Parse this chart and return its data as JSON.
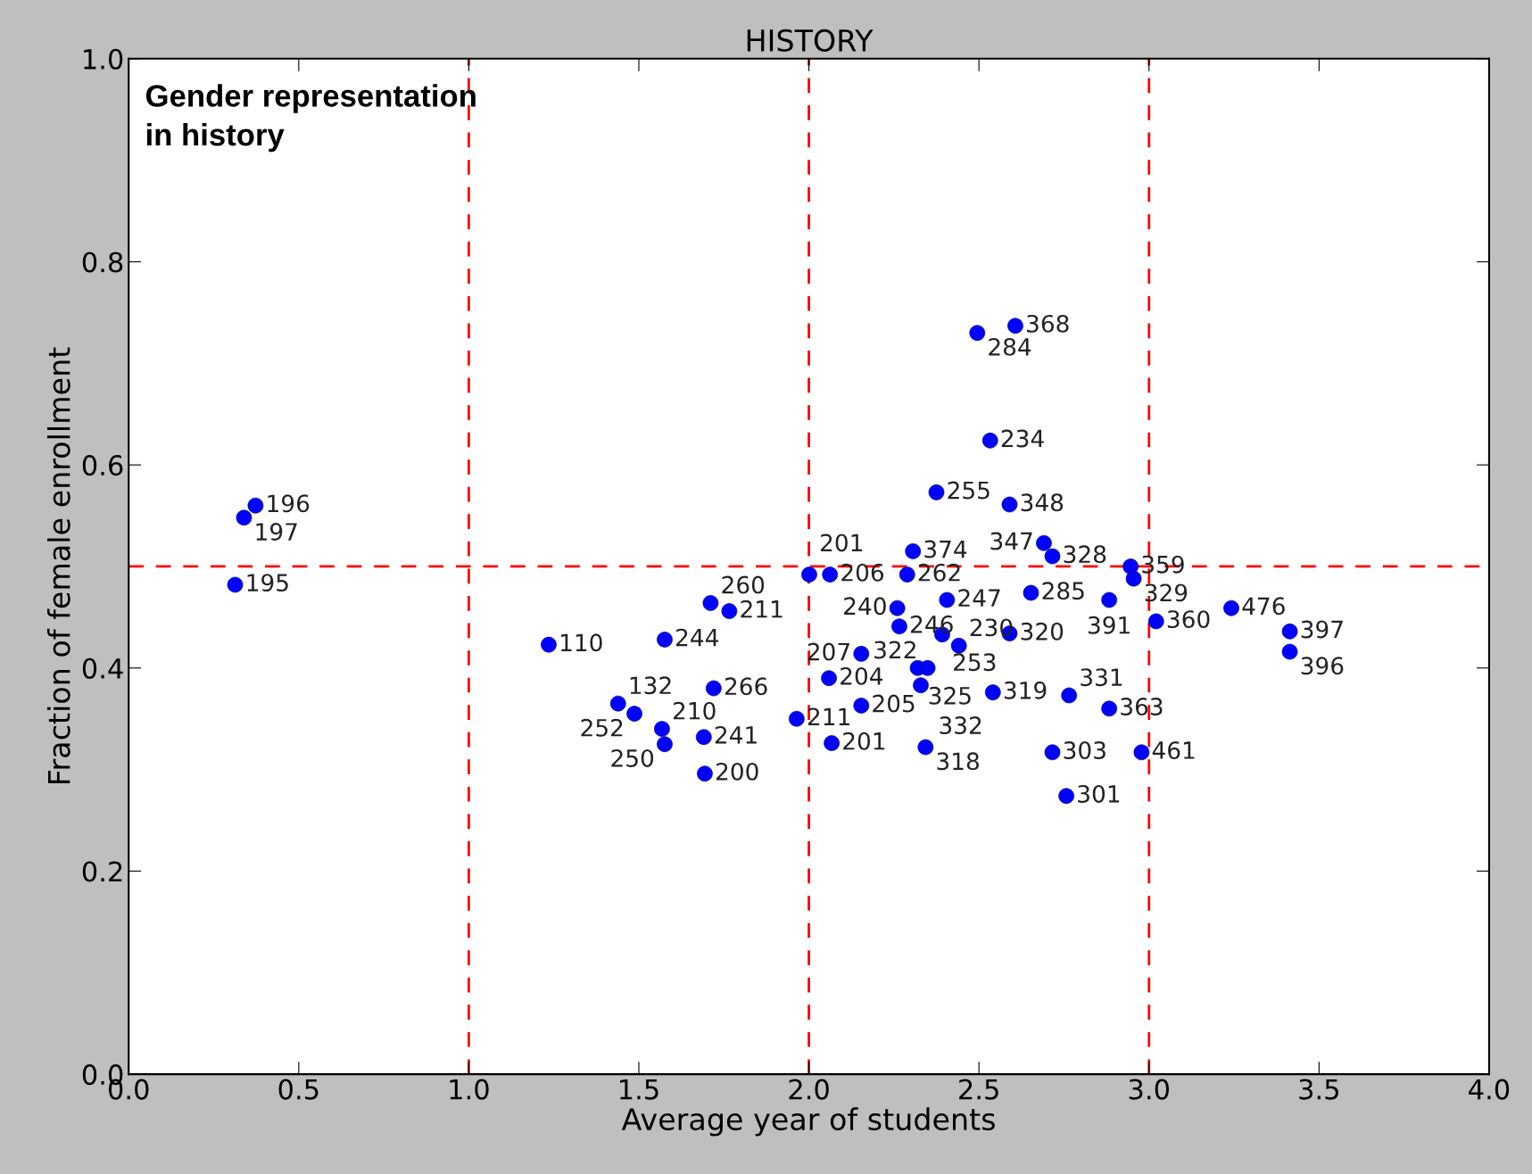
{
  "chart_data": {
    "type": "scatter",
    "title": "HISTORY",
    "xlabel": "Average year of students",
    "ylabel": "Fraction of female enrollment",
    "xlim": [
      0,
      4
    ],
    "ylim": [
      0,
      1
    ],
    "xticks": [
      {
        "value": 0,
        "label": "0.0"
      },
      {
        "value": 0.5,
        "label": "0.5"
      },
      {
        "value": 1,
        "label": "1.0"
      },
      {
        "value": 1.5,
        "label": "1.5"
      },
      {
        "value": 2,
        "label": "2.0"
      },
      {
        "value": 2.5,
        "label": "2.5"
      },
      {
        "value": 3,
        "label": "3.0"
      },
      {
        "value": 3.5,
        "label": "3.5"
      },
      {
        "value": 4,
        "label": "4.0"
      }
    ],
    "yticks": [
      {
        "value": 0,
        "label": "0.0"
      },
      {
        "value": 0.2,
        "label": "0.2"
      },
      {
        "value": 0.4,
        "label": "0.4"
      },
      {
        "value": 0.6,
        "label": "0.6"
      },
      {
        "value": 0.8,
        "label": "0.8"
      },
      {
        "value": 1,
        "label": "1.0"
      }
    ],
    "grid": false,
    "marker": "circle",
    "series": [
      {
        "color": "#0000ff",
        "x": [
          0.373,
          0.339,
          0.313,
          1.235,
          1.576,
          1.711,
          1.766,
          1.72,
          1.439,
          1.487,
          1.568,
          1.691,
          1.576,
          1.694,
          1.964,
          2.067,
          2.154,
          2.059,
          2.154,
          2.001,
          2.062,
          2.289,
          2.306,
          2.26,
          2.266,
          2.406,
          2.392,
          2.441,
          2.32,
          2.349,
          2.329,
          2.343,
          2.541,
          2.59,
          2.653,
          2.375,
          2.59,
          2.533,
          2.495,
          2.607,
          2.691,
          2.716,
          2.946,
          2.955,
          2.883,
          3.021,
          3.242,
          3.414,
          3.414,
          2.765,
          2.883,
          2.716,
          2.978,
          2.757
        ],
        "values": [
          0.56,
          0.548,
          0.482,
          0.423,
          0.428,
          0.464,
          0.456,
          0.38,
          0.365,
          0.355,
          0.34,
          0.332,
          0.325,
          0.296,
          0.35,
          0.326,
          0.363,
          0.39,
          0.414,
          0.492,
          0.492,
          0.492,
          0.515,
          0.459,
          0.441,
          0.467,
          0.433,
          0.422,
          0.4,
          0.4,
          0.383,
          0.322,
          0.376,
          0.434,
          0.474,
          0.573,
          0.561,
          0.624,
          0.73,
          0.737,
          0.523,
          0.51,
          0.5,
          0.488,
          0.467,
          0.446,
          0.459,
          0.436,
          0.416,
          0.373,
          0.36,
          0.317,
          0.317,
          0.274
        ]
      }
    ],
    "ref_lines": [
      {
        "axis": "x",
        "value": 1,
        "color": "#ff0000",
        "line_style": "dashed"
      },
      {
        "axis": "x",
        "value": 2,
        "color": "#ff0000",
        "line_style": "dashed"
      },
      {
        "axis": "x",
        "value": 3,
        "color": "#ff0000",
        "line_style": "dashed"
      },
      {
        "axis": "y",
        "value": 0.5,
        "color": "#ff0000",
        "line_style": "dashed"
      }
    ],
    "annotations": [
      "Gender representation\nin history",
      {
        "text": "196",
        "x": 0.373,
        "y": 0.56
      },
      {
        "text": "197",
        "x": 0.339,
        "y": 0.548
      },
      {
        "text": "195",
        "x": 0.313,
        "y": 0.482
      },
      {
        "text": "110",
        "x": 1.235,
        "y": 0.423
      },
      {
        "text": "244",
        "x": 1.576,
        "y": 0.428
      },
      {
        "text": "260",
        "x": 1.711,
        "y": 0.464
      },
      {
        "text": "211",
        "x": 1.766,
        "y": 0.456
      },
      {
        "text": "266",
        "x": 1.72,
        "y": 0.38
      },
      {
        "text": "132",
        "x": 1.439,
        "y": 0.365
      },
      {
        "text": "252",
        "x": 1.487,
        "y": 0.355
      },
      {
        "text": "210",
        "x": 1.568,
        "y": 0.34
      },
      {
        "text": "241",
        "x": 1.691,
        "y": 0.332
      },
      {
        "text": "250",
        "x": 1.576,
        "y": 0.325
      },
      {
        "text": "200",
        "x": 1.694,
        "y": 0.296
      },
      {
        "text": "211",
        "x": 1.964,
        "y": 0.35
      },
      {
        "text": "201",
        "x": 2.067,
        "y": 0.326
      },
      {
        "text": "205",
        "x": 2.154,
        "y": 0.363
      },
      {
        "text": "204",
        "x": 2.059,
        "y": 0.39
      },
      {
        "text": "207",
        "x": 2.154,
        "y": 0.414
      },
      {
        "text": "201",
        "x": 2.001,
        "y": 0.492
      },
      {
        "text": "206",
        "x": 2.062,
        "y": 0.492
      },
      {
        "text": "262",
        "x": 2.289,
        "y": 0.492
      },
      {
        "text": "374",
        "x": 2.306,
        "y": 0.515
      },
      {
        "text": "240",
        "x": 2.26,
        "y": 0.459
      },
      {
        "text": "246",
        "x": 2.266,
        "y": 0.441
      },
      {
        "text": "247",
        "x": 2.406,
        "y": 0.467
      },
      {
        "text": "253",
        "x": 2.392,
        "y": 0.433
      },
      {
        "text": "230",
        "x": 2.441,
        "y": 0.422
      },
      {
        "text": "325",
        "x": 2.32,
        "y": 0.4
      },
      {
        "text": "322",
        "x": 2.349,
        "y": 0.4
      },
      {
        "text": "332",
        "x": 2.329,
        "y": 0.383
      },
      {
        "text": "318",
        "x": 2.343,
        "y": 0.322
      },
      {
        "text": "319",
        "x": 2.541,
        "y": 0.376
      },
      {
        "text": "320",
        "x": 2.59,
        "y": 0.434
      },
      {
        "text": "285",
        "x": 2.653,
        "y": 0.474
      },
      {
        "text": "255",
        "x": 2.375,
        "y": 0.573
      },
      {
        "text": "348",
        "x": 2.59,
        "y": 0.561
      },
      {
        "text": "234",
        "x": 2.533,
        "y": 0.624
      },
      {
        "text": "284",
        "x": 2.495,
        "y": 0.73
      },
      {
        "text": "368",
        "x": 2.607,
        "y": 0.737
      },
      {
        "text": "347",
        "x": 2.691,
        "y": 0.523
      },
      {
        "text": "328",
        "x": 2.716,
        "y": 0.51
      },
      {
        "text": "359",
        "x": 2.946,
        "y": 0.5
      },
      {
        "text": "329",
        "x": 2.955,
        "y": 0.488
      },
      {
        "text": "391",
        "x": 2.883,
        "y": 0.467
      },
      {
        "text": "360",
        "x": 3.021,
        "y": 0.446
      },
      {
        "text": "476",
        "x": 3.242,
        "y": 0.459
      },
      {
        "text": "397",
        "x": 3.414,
        "y": 0.436
      },
      {
        "text": "396",
        "x": 3.414,
        "y": 0.416
      },
      {
        "text": "331",
        "x": 2.765,
        "y": 0.373
      },
      {
        "text": "363",
        "x": 2.883,
        "y": 0.36
      },
      {
        "text": "303",
        "x": 2.716,
        "y": 0.317
      },
      {
        "text": "461",
        "x": 2.978,
        "y": 0.317
      },
      {
        "text": "301",
        "x": 2.757,
        "y": 0.274
      }
    ]
  }
}
